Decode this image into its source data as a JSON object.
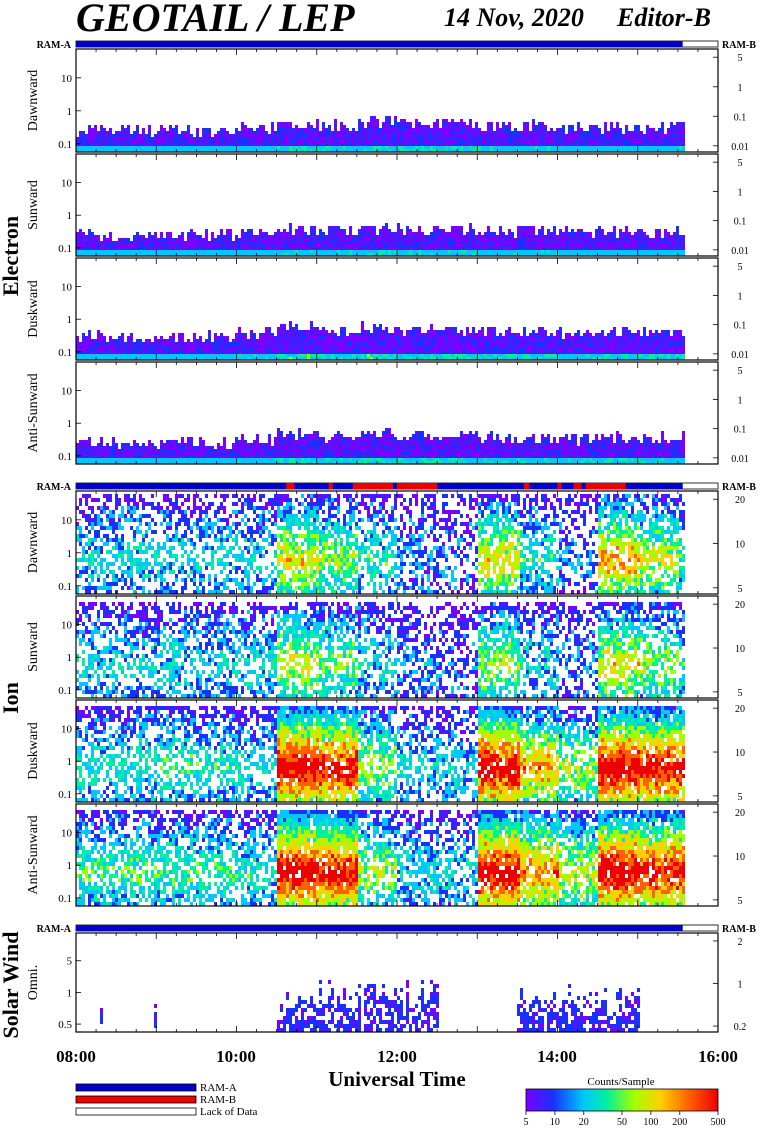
{
  "title": "GEOTAIL / LEP",
  "date": "14 Nov, 2020",
  "editor": "Editor-B",
  "xlabel": "Universal Time",
  "x_ticks": [
    "08:00",
    "10:00",
    "12:00",
    "14:00",
    "16:00"
  ],
  "time_range_hours": [
    8,
    16
  ],
  "data_end_hour": 15.56,
  "ram_a_label": "RAM-A",
  "ram_b_label": "RAM-B",
  "groups": [
    {
      "label": "Electron",
      "panels": [
        {
          "label": "Dawnward",
          "left_ticks": [
            "10",
            "1",
            "0.1"
          ],
          "right_ticks": [
            "5",
            "1",
            "0.1",
            "0.01"
          ],
          "activity": [
            0.12,
            0.1,
            0.1,
            0.1,
            0.15,
            0.25,
            0.2,
            0.3,
            0.25,
            0.25,
            0.2,
            0.2,
            0.15,
            0.15,
            0.15,
            0.2
          ]
        },
        {
          "label": "Sunward",
          "left_ticks": [
            "10",
            "1",
            "0.1"
          ],
          "right_ticks": [
            "5",
            "1",
            "0.1",
            "0.01"
          ],
          "activity": [
            0.1,
            0.1,
            0.1,
            0.1,
            0.12,
            0.2,
            0.18,
            0.25,
            0.2,
            0.2,
            0.18,
            0.18,
            0.15,
            0.15,
            0.15,
            0.18
          ]
        },
        {
          "label": "Duskward",
          "left_ticks": [
            "10",
            "1",
            "0.1"
          ],
          "right_ticks": [
            "5",
            "1",
            "0.1",
            "0.01"
          ],
          "activity": [
            0.15,
            0.12,
            0.12,
            0.15,
            0.2,
            0.35,
            0.25,
            0.35,
            0.3,
            0.3,
            0.25,
            0.25,
            0.2,
            0.25,
            0.25,
            0.25
          ]
        },
        {
          "label": "Anti-Sunward",
          "left_ticks": [
            "10",
            "1",
            "0.1"
          ],
          "right_ticks": [
            "5",
            "1",
            "0.1",
            "0.01"
          ],
          "activity": [
            0.12,
            0.1,
            0.1,
            0.12,
            0.18,
            0.3,
            0.22,
            0.3,
            0.25,
            0.25,
            0.2,
            0.22,
            0.18,
            0.2,
            0.2,
            0.22
          ]
        }
      ]
    },
    {
      "label": "Ion",
      "ram_b_intervals": [
        [
          10.62,
          10.72
        ],
        [
          11.15,
          11.2
        ],
        [
          11.45,
          11.95
        ],
        [
          12.0,
          12.5
        ],
        [
          13.58,
          13.65
        ],
        [
          14.0,
          14.05
        ],
        [
          14.2,
          14.3
        ],
        [
          14.35,
          14.85
        ]
      ],
      "panels": [
        {
          "label": "Dawnward",
          "left_ticks": [
            "10",
            "1",
            "0.1"
          ],
          "right_ticks": [
            "20",
            "10",
            "5"
          ],
          "activity": [
            0.3,
            0.3,
            0.3,
            0.3,
            0.3,
            0.6,
            0.5,
            0.35,
            0.2,
            0.15,
            0.6,
            0.35,
            0.2,
            0.7,
            0.55,
            0.4
          ]
        },
        {
          "label": "Sunward",
          "left_ticks": [
            "10",
            "1",
            "0.1"
          ],
          "right_ticks": [
            "20",
            "10",
            "5"
          ],
          "activity": [
            0.3,
            0.3,
            0.3,
            0.3,
            0.3,
            0.55,
            0.45,
            0.3,
            0.2,
            0.15,
            0.5,
            0.3,
            0.2,
            0.6,
            0.5,
            0.35
          ]
        },
        {
          "label": "Duskward",
          "left_ticks": [
            "10",
            "1",
            "0.1"
          ],
          "right_ticks": [
            "20",
            "10",
            "5"
          ],
          "activity": [
            0.35,
            0.35,
            0.4,
            0.35,
            0.3,
            0.95,
            0.9,
            0.5,
            0.3,
            0.3,
            0.95,
            0.7,
            0.5,
            0.95,
            0.9,
            0.9
          ]
        },
        {
          "label": "Anti-Sunward",
          "left_ticks": [
            "10",
            "1",
            "0.1"
          ],
          "right_ticks": [
            "20",
            "10",
            "5"
          ],
          "activity": [
            0.4,
            0.4,
            0.4,
            0.4,
            0.35,
            0.95,
            0.9,
            0.5,
            0.3,
            0.3,
            0.95,
            0.75,
            0.55,
            0.95,
            0.9,
            0.9
          ]
        }
      ]
    },
    {
      "label": "Solar Wind",
      "panels": [
        {
          "label": "Omni.",
          "left_ticks": [
            "5",
            "1",
            "0.5"
          ],
          "right_ticks": [
            "2",
            "1",
            "0.2"
          ],
          "activity": [
            0.02,
            0.02,
            0.02,
            0.02,
            0.02,
            0.3,
            0.45,
            0.45,
            0.5,
            0.05,
            0.05,
            0.35,
            0.35,
            0.4,
            0.05,
            0.05
          ]
        }
      ]
    }
  ],
  "legend": {
    "items": [
      "RAM-A",
      "RAM-B",
      "Lack of Data"
    ],
    "colors": [
      "#0000cc",
      "#ee0000",
      "#ffffff"
    ]
  },
  "colorbar": {
    "title": "Counts/Sample",
    "ticks": [
      "5",
      "10",
      "20",
      "50",
      "100",
      "200",
      "500"
    ],
    "colors": [
      "#7a00ff",
      "#1a30ff",
      "#00c8ff",
      "#00f0a0",
      "#a0ff00",
      "#ffd000",
      "#ff6000",
      "#ee0000"
    ]
  },
  "chart_data": {
    "type": "heatmap",
    "title": "GEOTAIL / LEP",
    "xlabel": "Universal Time",
    "x_ticks": [
      "08:00",
      "10:00",
      "12:00",
      "14:00",
      "16:00"
    ],
    "series": [
      {
        "name": "Electron Dawnward"
      },
      {
        "name": "Electron Sunward"
      },
      {
        "name": "Electron Duskward"
      },
      {
        "name": "Electron Anti-Sunward"
      },
      {
        "name": "Ion Dawnward"
      },
      {
        "name": "Ion Sunward"
      },
      {
        "name": "Ion Duskward"
      },
      {
        "name": "Ion Anti-Sunward"
      },
      {
        "name": "Solar Wind Omni."
      }
    ],
    "colorbar_label": "Counts/Sample",
    "colorbar_range": [
      5,
      500
    ]
  }
}
